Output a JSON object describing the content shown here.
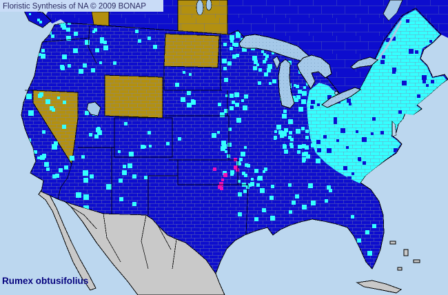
{
  "header": {
    "title": "Floristic Synthesis of NA © 2009 BONAP"
  },
  "footer": {
    "species_label": "Rumex obtusifolius"
  },
  "map": {
    "seed": 1337,
    "palette": {
      "ocean": "#BCD7EF",
      "land_present": "#0D0DCE",
      "county_documented": "#35FFFF",
      "state_absent_gold": "#B3900F",
      "noxious_magenta": "#EE10B8",
      "no_data_gray": "#C9C9C9",
      "lake": "#A5C9E9",
      "lake_dot": "#7FA6C9",
      "county_line": "#7C88AC",
      "canada_line": "#5E6FB0",
      "titlebar_bg": "#C9DCF7",
      "title_text": "#2A2A60",
      "label_text": "#00007D",
      "border_black": "#000000"
    },
    "region_fills": {
      "canada": "land_present",
      "united-states": "land_present",
      "mexico": "no_data_gray",
      "baja-california": "no_data_gray",
      "cuba": "no_data_gray",
      "bahamas": "no_data_gray",
      "vancouver-island": "land_present",
      "nevada": "state_absent_gold",
      "wyoming": "state_absent_gold",
      "north-dakota": "state_absent_gold",
      "manitoba": "state_absent_gold",
      "bc-gold-patch": "state_absent_gold",
      "northeast-dense-patch": "county_documented",
      "maine": "county_documented",
      "lake-superior": "lake",
      "lake-michigan": "lake",
      "green-bay": "lake",
      "lake-huron": "lake",
      "lake-erie": "lake",
      "lake-ontario": "lake",
      "lake-st-clair": "lake",
      "st-lawrence-estuary": "lake",
      "lake-winnipeg": "lake",
      "lake-winnipeg-2": "lake",
      "great-salt-lake": "lake",
      "chesapeake-bay": "ocean"
    },
    "speckles": [
      {
        "region": "wa",
        "color": "county_documented",
        "count": 16,
        "min": 4,
        "max": 8,
        "clip": "us"
      },
      {
        "region": "or",
        "color": "county_documented",
        "count": 11,
        "min": 4,
        "max": 8,
        "clip": "us"
      },
      {
        "region": "ca",
        "color": "county_documented",
        "count": 26,
        "min": 4,
        "max": 8,
        "clip": "us"
      },
      {
        "region": "id",
        "color": "county_documented",
        "count": 9,
        "min": 4,
        "max": 7,
        "clip": "us"
      },
      {
        "region": "mt",
        "color": "county_documented",
        "count": 7,
        "min": 4,
        "max": 7,
        "clip": "us"
      },
      {
        "region": "ut",
        "color": "county_documented",
        "count": 7,
        "min": 4,
        "max": 7,
        "clip": "us"
      },
      {
        "region": "az",
        "color": "county_documented",
        "count": 9,
        "min": 4,
        "max": 8,
        "clip": "us"
      },
      {
        "region": "nm",
        "color": "county_documented",
        "count": 10,
        "min": 4,
        "max": 8,
        "clip": "us"
      },
      {
        "region": "co",
        "color": "county_documented",
        "count": 6,
        "min": 4,
        "max": 7,
        "clip": "us"
      },
      {
        "region": "plains",
        "color": "county_documented",
        "count": 12,
        "min": 4,
        "max": 7,
        "clip": "us"
      },
      {
        "region": "mn",
        "color": "county_documented",
        "count": 16,
        "min": 4,
        "max": 7,
        "clip": "us"
      },
      {
        "region": "iamo",
        "color": "county_documented",
        "count": 28,
        "min": 4,
        "max": 7,
        "clip": "us"
      },
      {
        "region": "wi",
        "color": "county_documented",
        "count": 22,
        "min": 4,
        "max": 7,
        "clip": "us"
      },
      {
        "region": "mi",
        "color": "county_documented",
        "count": 18,
        "min": 4,
        "max": 7,
        "clip": "us"
      },
      {
        "region": "ilin",
        "color": "county_documented",
        "count": 34,
        "min": 4,
        "max": 7,
        "clip": "us"
      },
      {
        "region": "kytn",
        "color": "county_documented",
        "count": 18,
        "min": 4,
        "max": 7,
        "clip": "us"
      },
      {
        "region": "arla",
        "color": "county_documented",
        "count": 16,
        "min": 4,
        "max": 7,
        "clip": "us"
      },
      {
        "region": "okeast",
        "color": "county_documented",
        "count": 4,
        "min": 4,
        "max": 6,
        "clip": "us"
      },
      {
        "region": "south",
        "color": "county_documented",
        "count": 14,
        "min": 4,
        "max": 7,
        "clip": "us"
      },
      {
        "region": "fl",
        "color": "county_documented",
        "count": 6,
        "min": 4,
        "max": 7,
        "clip": "us"
      },
      {
        "region": "magok",
        "color": "noxious_magenta",
        "count": 9,
        "min": 4,
        "max": 6,
        "clip": "us"
      },
      {
        "region": "nepatch",
        "color": "land_present",
        "count": 85,
        "min": 4,
        "max": 7,
        "clip": "ne"
      },
      {
        "region": "vanisle",
        "color": "county_documented",
        "count": 3,
        "min": 3,
        "max": 5,
        "clip": "canada"
      }
    ]
  }
}
